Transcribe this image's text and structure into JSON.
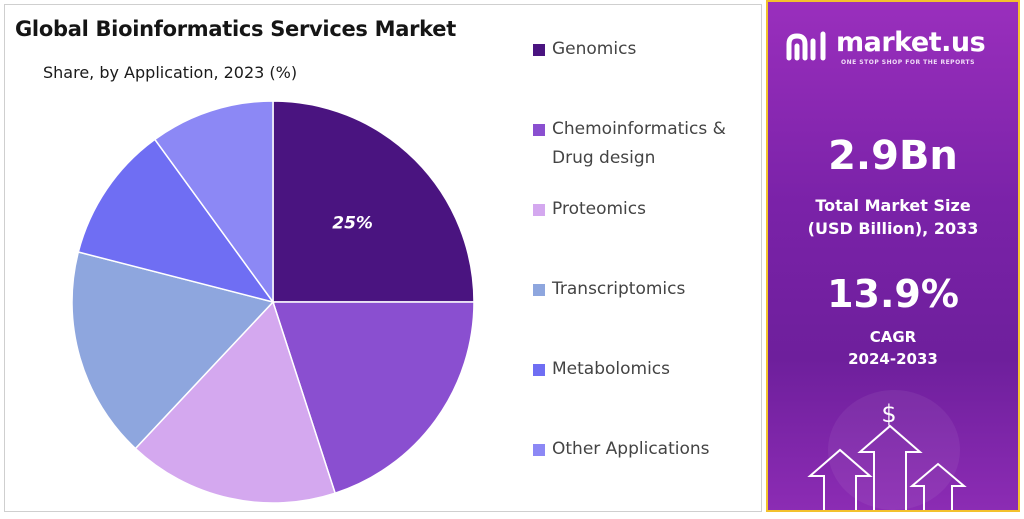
{
  "chart_data": {
    "type": "pie",
    "title": "Global Bioinformatics Services Market",
    "subtitle": "Share, by Application, 2023 (%)",
    "legend_position": "right",
    "slices": [
      {
        "label": "Genomics",
        "value": 25,
        "color": "#4a1480",
        "data_label": "25%"
      },
      {
        "label": "Chemoinformatics &\nDrug design",
        "value": 20,
        "color": "#8a4fd0",
        "data_label": ""
      },
      {
        "label": "Proteomics",
        "value": 17,
        "color": "#d4a8ef",
        "data_label": ""
      },
      {
        "label": "Transcriptomics",
        "value": 17,
        "color": "#8ea6de",
        "data_label": ""
      },
      {
        "label": "Metabolomics",
        "value": 11,
        "color": "#6f6ef3",
        "data_label": ""
      },
      {
        "label": "Other Applications",
        "value": 10,
        "color": "#8c88f5",
        "data_label": ""
      }
    ]
  },
  "sidebar": {
    "brand": "market.us",
    "tagline": "ONE STOP SHOP FOR THE REPORTS",
    "market_size_value": "2.9Bn",
    "market_size_label_1": "Total Market Size",
    "market_size_label_2": "(USD Billion), 2033",
    "cagr_value": "13.9%",
    "cagr_label_1": "CAGR",
    "cagr_label_2": "2024-2033",
    "dollar_symbol": "$",
    "icons": [
      "logo-icon",
      "dollar-icon",
      "growth-arrows-icon"
    ]
  },
  "colors": {
    "accent_border": "#f3c12c",
    "sidebar_purple": "#7a22a8"
  }
}
